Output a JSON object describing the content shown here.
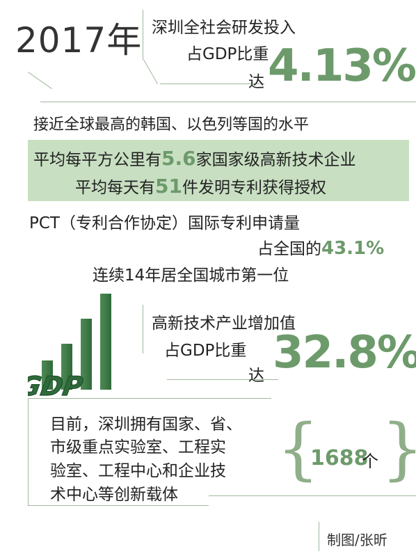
{
  "header": {
    "year": "2017年",
    "rd_line1": "深圳全社会研发投入",
    "rd_line2": "占GDP比重",
    "rd_line3": "达",
    "rd_value": "4.13%"
  },
  "near_text": "接近全球最高的韩国、以色列等国的水平",
  "highlight": {
    "line1_pre": "平均每平方公里有",
    "line1_num": "5.6",
    "line1_post": "家国家级高新技术企业",
    "line2_pre": "平均每天有",
    "line2_num": "51",
    "line2_post": "件发明专利获得授权"
  },
  "pct": {
    "line1": "PCT（专利合作协定）国际专利申请量",
    "line2_pre": "占全国的",
    "line2_num": "43.1%",
    "line3": "连续14年居全国城市第一位"
  },
  "hitech": {
    "line1": "高新技术产业增加值",
    "line2": "占GDP比重",
    "line3": "达",
    "value": "32.8%"
  },
  "gdp_label": "GDP",
  "carriers": {
    "line1": "目前，深圳拥有国家、省、",
    "line2": "市级重点实验室、工程实",
    "line3": "验室、工程中心和企业技",
    "line4": "术中心等创新载体",
    "count": "1688",
    "unit": "个"
  },
  "credit": "制图/张昕",
  "colors": {
    "accent_green": "#6d9a6b",
    "band_green": "#c8dfc2",
    "line_green": "#9fb89c"
  }
}
